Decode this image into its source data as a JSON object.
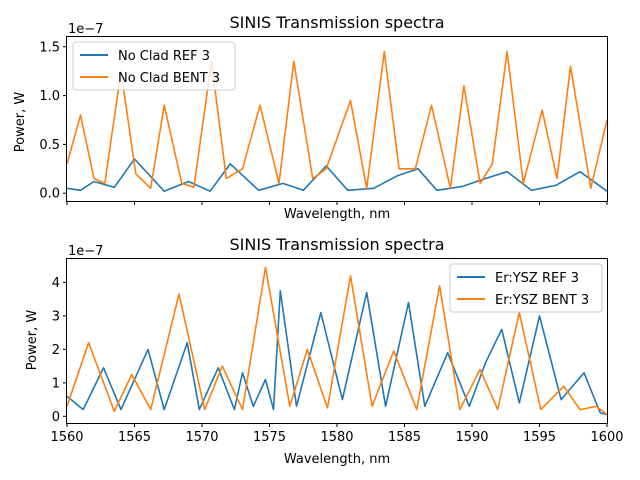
{
  "chart_data": [
    {
      "type": "line",
      "title": "SINIS Transmission spectra",
      "xlabel": "Wavelength, nm",
      "ylabel": "Power, W",
      "scale_label": "1e−7",
      "xlim": [
        1560,
        1600
      ],
      "ylim": [
        -0.08,
        1.6
      ],
      "y_ticks": [
        0.0,
        0.5,
        1.0,
        1.5
      ],
      "y_tick_labels": [
        "0.0",
        "0.5",
        "1.0",
        "1.5"
      ],
      "x_ticks": [
        1560,
        1565,
        1570,
        1575,
        1580,
        1585,
        1590,
        1595,
        1600
      ],
      "show_x_tick_labels": false,
      "grid": false,
      "legend_position": "top-left",
      "series": [
        {
          "name": "No Clad REF 3",
          "color": "#1f77b4",
          "x": [
            1560.0,
            1561.0,
            1562.0,
            1563.5,
            1565.0,
            1567.2,
            1569.0,
            1570.6,
            1572.1,
            1574.2,
            1576.0,
            1577.5,
            1579.2,
            1580.8,
            1582.7,
            1584.5,
            1586.0,
            1587.4,
            1589.3,
            1591.0,
            1592.6,
            1594.4,
            1596.2,
            1598.0,
            1600.0
          ],
          "y": [
            0.05,
            0.03,
            0.12,
            0.06,
            0.35,
            0.02,
            0.12,
            0.02,
            0.3,
            0.03,
            0.1,
            0.03,
            0.28,
            0.03,
            0.05,
            0.18,
            0.25,
            0.03,
            0.07,
            0.15,
            0.22,
            0.03,
            0.08,
            0.22,
            0.02
          ]
        },
        {
          "name": "No Clad BENT 3",
          "color": "#ff7f0e",
          "x": [
            1560.0,
            1561.0,
            1562.0,
            1562.8,
            1564.0,
            1565.1,
            1566.2,
            1567.2,
            1568.5,
            1569.4,
            1570.7,
            1571.8,
            1573.0,
            1574.3,
            1575.7,
            1576.8,
            1578.2,
            1579.2,
            1581.0,
            1582.2,
            1583.5,
            1584.6,
            1585.8,
            1587.0,
            1588.4,
            1589.4,
            1590.6,
            1591.5,
            1592.6,
            1593.8,
            1595.2,
            1596.3,
            1597.3,
            1598.8,
            1600.0
          ],
          "y": [
            0.3,
            0.8,
            0.15,
            0.1,
            1.25,
            0.2,
            0.05,
            0.9,
            0.1,
            0.06,
            1.35,
            0.15,
            0.25,
            0.9,
            0.1,
            1.35,
            0.15,
            0.25,
            0.95,
            0.05,
            1.45,
            0.25,
            0.25,
            0.9,
            0.05,
            1.1,
            0.1,
            0.3,
            1.45,
            0.1,
            0.85,
            0.15,
            1.3,
            0.05,
            0.75
          ]
        }
      ]
    },
    {
      "type": "line",
      "title": "SINIS Transmission spectra",
      "xlabel": "Wavelength, nm",
      "ylabel": "Power, W",
      "scale_label": "1e−7",
      "xlim": [
        1560,
        1600
      ],
      "ylim": [
        -0.2,
        4.7
      ],
      "y_ticks": [
        0,
        1,
        2,
        3,
        4
      ],
      "y_tick_labels": [
        "0",
        "1",
        "2",
        "3",
        "4"
      ],
      "x_ticks": [
        1560,
        1565,
        1570,
        1575,
        1580,
        1585,
        1590,
        1595,
        1600
      ],
      "x_tick_labels": [
        "1560",
        "1565",
        "1570",
        "1575",
        "1580",
        "1585",
        "1590",
        "1595",
        "1600"
      ],
      "show_x_tick_labels": true,
      "grid": false,
      "legend_position": "top-right",
      "series": [
        {
          "name": "Er:YSZ REF 3",
          "color": "#1f77b4",
          "x": [
            1560.0,
            1561.2,
            1562.7,
            1564.0,
            1566.0,
            1567.2,
            1568.9,
            1569.8,
            1571.2,
            1572.4,
            1573.0,
            1573.8,
            1574.7,
            1575.3,
            1575.8,
            1577.0,
            1578.8,
            1580.4,
            1582.2,
            1583.6,
            1585.3,
            1586.5,
            1588.2,
            1589.8,
            1591.0,
            1592.2,
            1593.5,
            1595.0,
            1596.6,
            1598.3,
            1599.5,
            1600.0
          ],
          "y": [
            0.6,
            0.2,
            1.45,
            0.2,
            2.0,
            0.2,
            2.2,
            0.2,
            1.45,
            0.2,
            1.3,
            0.3,
            1.1,
            0.2,
            3.75,
            0.3,
            3.1,
            0.5,
            3.7,
            0.3,
            3.4,
            0.3,
            1.9,
            0.3,
            1.6,
            2.6,
            0.4,
            3.0,
            0.5,
            1.3,
            0.1,
            0.05
          ]
        },
        {
          "name": "Er:YSZ BENT 3",
          "color": "#ff7f0e",
          "x": [
            1560.0,
            1561.6,
            1563.5,
            1564.8,
            1566.2,
            1568.3,
            1570.2,
            1571.5,
            1573.0,
            1574.7,
            1576.5,
            1577.8,
            1579.3,
            1581.0,
            1582.6,
            1584.2,
            1585.9,
            1587.6,
            1589.1,
            1590.6,
            1591.9,
            1593.5,
            1595.1,
            1596.8,
            1598.0,
            1599.2,
            1600.0
          ],
          "y": [
            0.3,
            2.2,
            0.15,
            1.25,
            0.2,
            3.65,
            0.2,
            1.5,
            0.2,
            4.45,
            0.3,
            2.0,
            0.25,
            4.2,
            0.3,
            1.95,
            0.2,
            3.9,
            0.2,
            1.4,
            0.2,
            3.1,
            0.2,
            0.9,
            0.2,
            0.3,
            0.05
          ]
        }
      ]
    }
  ]
}
